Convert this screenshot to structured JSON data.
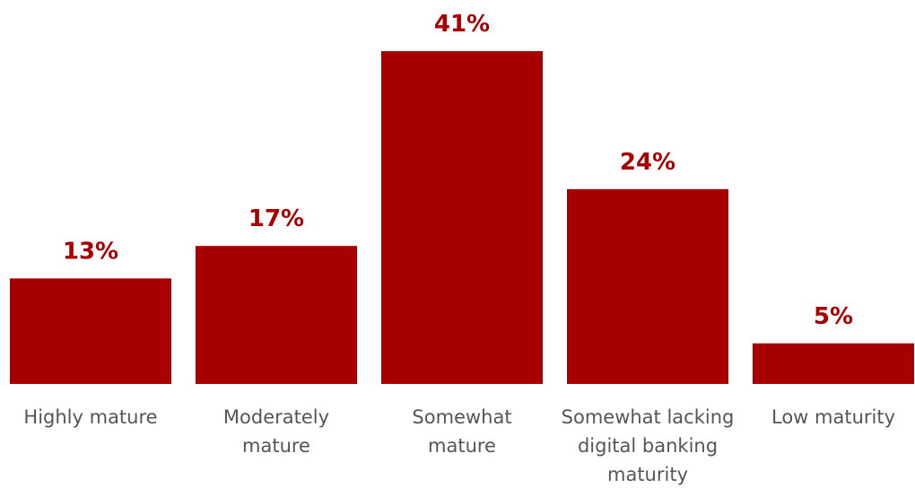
{
  "colors": {
    "bar": "#A80000",
    "value_label": "#A80000",
    "category_label": "#555555",
    "background": "#FFFFFF"
  },
  "chart_data": {
    "type": "bar",
    "title": "",
    "xlabel": "",
    "ylabel": "",
    "ylim": [
      0,
      41
    ],
    "grid": false,
    "legend": "none",
    "categories": [
      "Highly mature",
      "Moderately mature",
      "Somewhat mature",
      "Somewhat lacking digital banking maturity",
      "Low maturity"
    ],
    "category_label_lines": [
      [
        "Highly mature"
      ],
      [
        "Moderately",
        "mature"
      ],
      [
        "Somewhat",
        "mature"
      ],
      [
        "Somewhat lacking",
        "digital banking",
        "maturity"
      ],
      [
        "Low maturity"
      ]
    ],
    "values": [
      13,
      17,
      41,
      24,
      5
    ],
    "value_labels": [
      "13%",
      "17%",
      "41%",
      "24%",
      "5%"
    ]
  }
}
